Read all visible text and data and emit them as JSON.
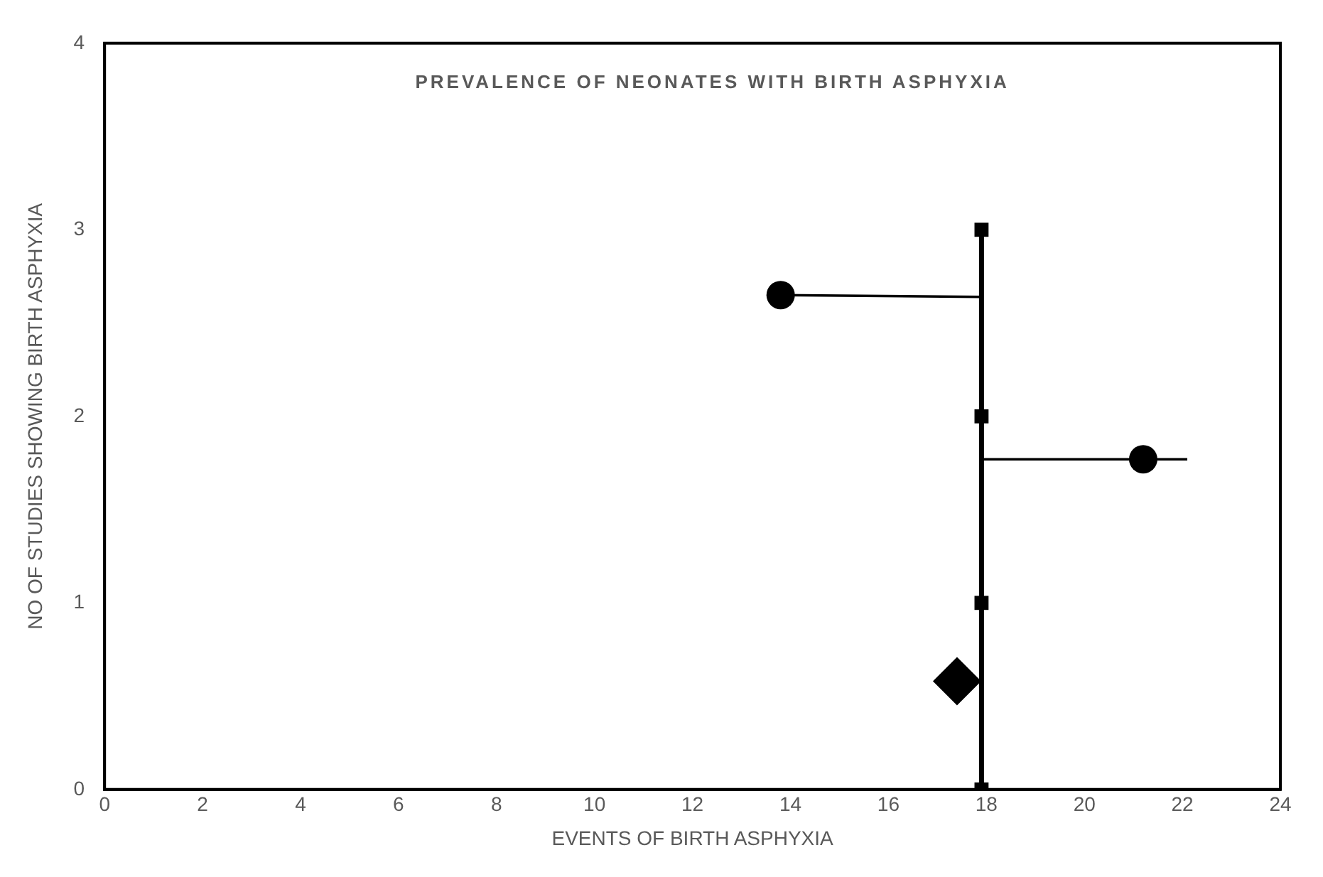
{
  "chart_data": {
    "type": "scatter",
    "title": "PREVALENCE OF NEONATES WITH BIRTH ASPHYXIA",
    "xlabel": "EVENTS OF BIRTH ASPHYXIA",
    "ylabel": "NO OF STUDIES SHOWING BIRTH ASPHYXIA",
    "xlim": [
      0,
      24
    ],
    "xticks": [
      0,
      2,
      4,
      6,
      8,
      10,
      12,
      14,
      16,
      18,
      20,
      22,
      24
    ],
    "ylim": [
      0,
      4
    ],
    "yticks": [
      0,
      1,
      2,
      3,
      4
    ],
    "grid": false,
    "legend": false,
    "series": [
      {
        "type": "line",
        "color": "#000000",
        "x": [
          17.9,
          17.9,
          17.9,
          17.9
        ],
        "values": [
          0,
          1,
          2,
          3
        ],
        "marker": "square"
      },
      {
        "type": "line",
        "color": "#000000",
        "x": [
          13.8,
          17.9
        ],
        "values": [
          2.65,
          2.64
        ],
        "marker": "none"
      },
      {
        "type": "line",
        "color": "#000000",
        "x": [
          17.9,
          22.1
        ],
        "values": [
          1.77,
          1.77
        ],
        "marker": "none"
      },
      {
        "type": "scatter",
        "color": "#000000",
        "x": [
          13.8,
          21.2
        ],
        "values": [
          2.65,
          1.77
        ],
        "marker": "circle"
      },
      {
        "type": "scatter",
        "color": "#000000",
        "x": [
          17.4
        ],
        "values": [
          0.58
        ],
        "marker": "diamond"
      }
    ]
  }
}
